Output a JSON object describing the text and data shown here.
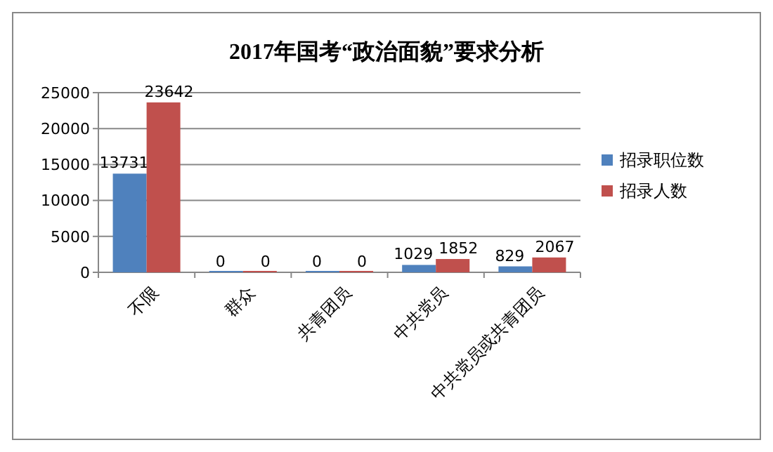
{
  "chart_data": {
    "type": "bar",
    "title": "2017年国考“政治面貌”要求分析",
    "categories": [
      "不限",
      "群众",
      "共青团员",
      "中共党员",
      "中共党员或共青团员"
    ],
    "series": [
      {
        "name": "招录职位数",
        "color": "#4f81bd",
        "values": [
          13731,
          0,
          0,
          1029,
          829
        ]
      },
      {
        "name": "招录人数",
        "color": "#c0504d",
        "values": [
          23642,
          0,
          0,
          1852,
          2067
        ]
      }
    ],
    "ylim": [
      0,
      25000
    ],
    "yticks": [
      0,
      5000,
      10000,
      15000,
      20000,
      25000
    ],
    "grid": "y",
    "legend": "right",
    "data_labels": true
  }
}
